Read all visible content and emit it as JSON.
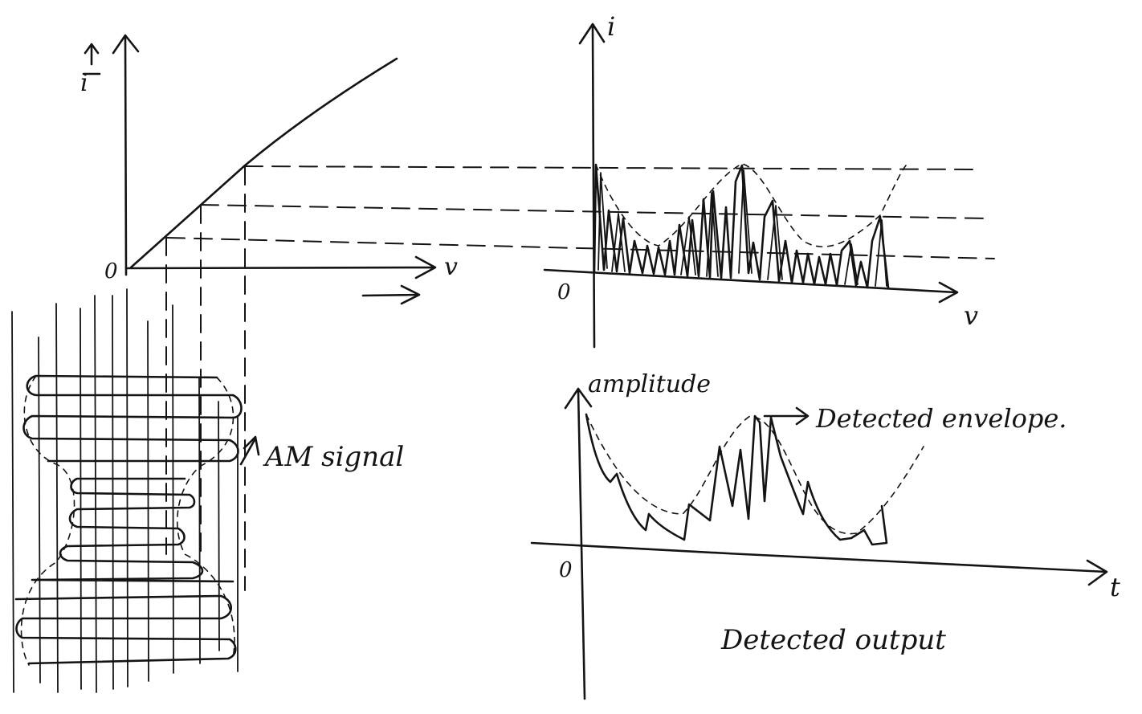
{
  "diagram": {
    "characteristic": {
      "y_axis_label": "i",
      "x_axis_label": "v",
      "origin_label": "0"
    },
    "input_signal": {
      "label": "AM signal"
    },
    "current_pulses": {
      "y_axis_label": "i",
      "x_axis_label": "v",
      "origin_label": "0"
    },
    "output": {
      "y_axis_label": "amplitude",
      "x_axis_label": "t",
      "origin_label": "0",
      "envelope_label": "Detected envelope.",
      "caption": "Detected output"
    }
  }
}
